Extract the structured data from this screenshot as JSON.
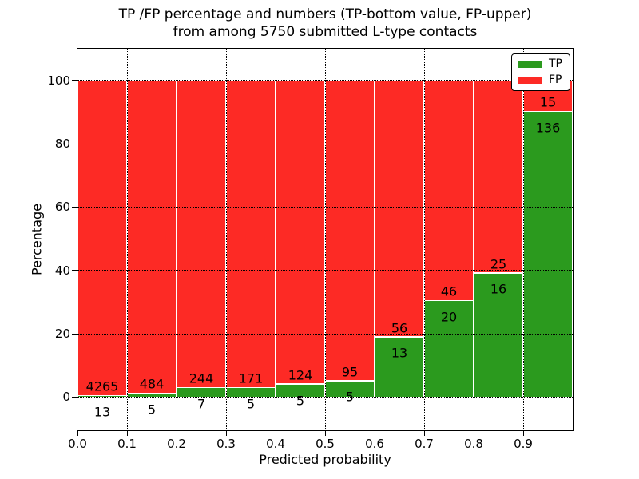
{
  "chart_data": {
    "type": "bar",
    "stacked": true,
    "normalized": "each bin stacked to 100%",
    "title_line1": "TP /FP percentage and numbers (TP-bottom value, FP-upper)",
    "title_line2": "from among 5750 submitted L-type contacts",
    "xlabel": "Predicted probability",
    "ylabel": "Percentage",
    "total_submitted": 5750,
    "bin_width": 0.1,
    "bins": [
      {
        "x0": "0.0",
        "tp": 13,
        "fp": 4265
      },
      {
        "x0": "0.1",
        "tp": 5,
        "fp": 484
      },
      {
        "x0": "0.2",
        "tp": 7,
        "fp": 244
      },
      {
        "x0": "0.3",
        "tp": 5,
        "fp": 171
      },
      {
        "x0": "0.4",
        "tp": 5,
        "fp": 124
      },
      {
        "x0": "0.5",
        "tp": 5,
        "fp": 95
      },
      {
        "x0": "0.6",
        "tp": 13,
        "fp": 56
      },
      {
        "x0": "0.7",
        "tp": 20,
        "fp": 46
      },
      {
        "x0": "0.8",
        "tp": 16,
        "fp": 25
      },
      {
        "x0": "0.9",
        "tp": 136,
        "fp": 15
      }
    ],
    "series": [
      {
        "name": "TP",
        "color": "#2B9A1E",
        "values": [
          13,
          5,
          7,
          5,
          5,
          5,
          13,
          20,
          16,
          136
        ]
      },
      {
        "name": "FP",
        "color": "#FD2A25",
        "values": [
          4265,
          484,
          244,
          171,
          124,
          95,
          56,
          46,
          25,
          15
        ]
      }
    ],
    "xticks": [
      "0.0",
      "0.1",
      "0.2",
      "0.3",
      "0.4",
      "0.5",
      "0.6",
      "0.7",
      "0.8",
      "0.9"
    ],
    "yticks": [
      0,
      20,
      40,
      60,
      80,
      100
    ],
    "xlim": [
      0.0,
      1.0
    ],
    "ylim": [
      -10.5,
      110
    ],
    "grid": "dotted",
    "legend": {
      "position": "upper right",
      "entries": [
        {
          "label": "TP",
          "color": "#2B9A1E"
        },
        {
          "label": "FP",
          "color": "#FD2A25"
        }
      ]
    }
  }
}
